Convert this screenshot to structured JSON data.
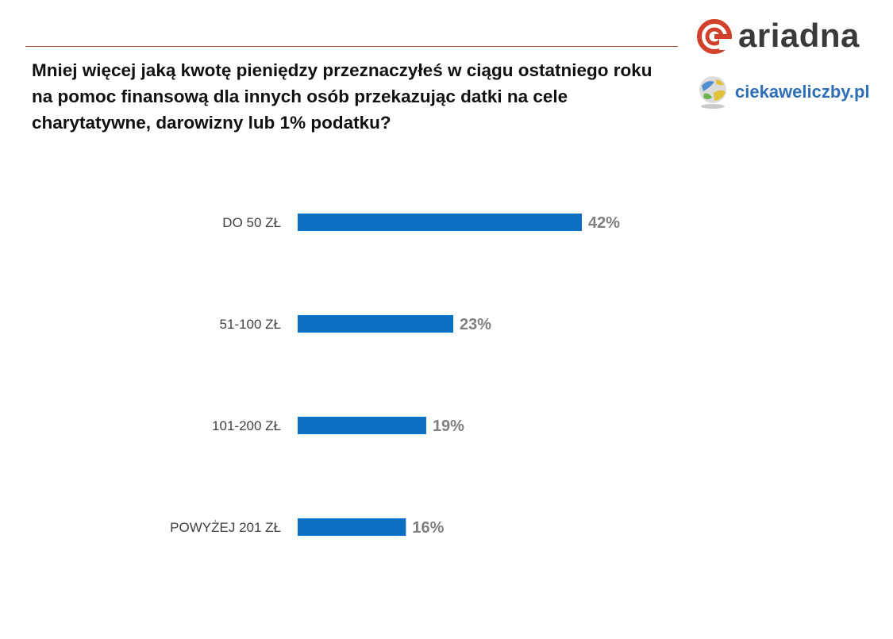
{
  "header": {
    "title": "Mniej więcej jaką kwotę pieniędzy przeznaczyłeś w ciągu ostatniego roku na pomoc finansową dla innych osób przekazując datki na cele charytatywne, darowizny lub 1% podatku?",
    "brand_name": "ariadna",
    "sub_brand_name": "ciekaweliczby.pl"
  },
  "colors": {
    "bar": "#0a6fc2",
    "value_label": "#7f7f7f",
    "category_label": "#404040",
    "brand_red": "#d0402b",
    "rule": "#a0523c"
  },
  "chart_data": {
    "type": "bar",
    "orientation": "horizontal",
    "categories": [
      "DO 50 ZŁ",
      "51-100 ZŁ",
      "101-200 ZŁ",
      "POWYŻEJ 201 ZŁ"
    ],
    "values": [
      42,
      23,
      19,
      16
    ],
    "value_labels": [
      "42%",
      "23%",
      "19%",
      "16%"
    ],
    "unit": "%",
    "xlim": [
      0,
      100
    ],
    "grid": false,
    "legend": "none"
  }
}
